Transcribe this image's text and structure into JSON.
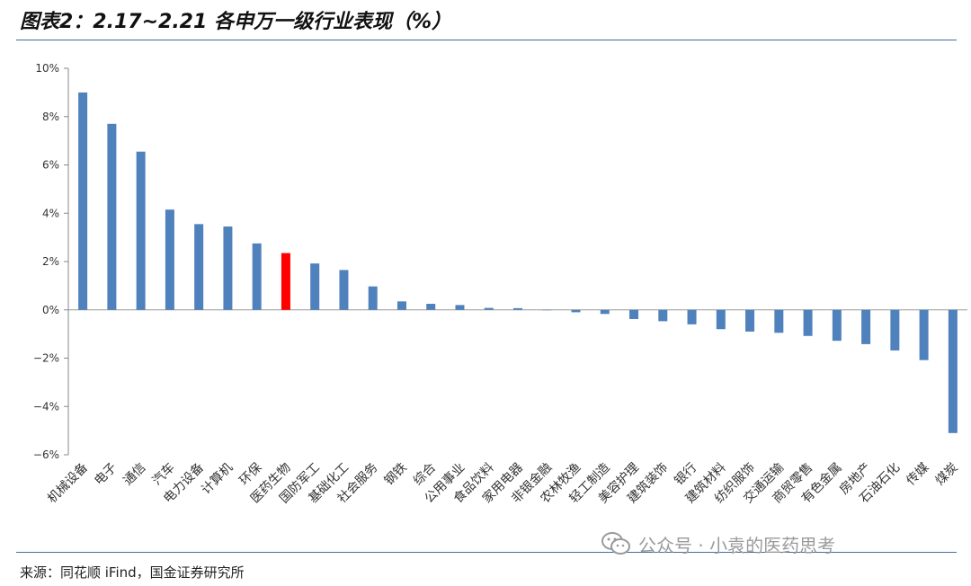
{
  "header": {
    "title": "图表2：2.17~2.21 各申万一级行业表现（%）"
  },
  "footer": {
    "source": "来源：同花顺 iFind，国金证券研究所",
    "watermark": "公众号 · 小袁的医药思考",
    "watermark_icon": "wechat-icon"
  },
  "colors": {
    "bar": "#4f81bd",
    "highlight": "#ff0000",
    "rule": "#3f6f9e"
  },
  "chart_data": {
    "type": "bar",
    "title": "",
    "xlabel": "",
    "ylabel": "",
    "ylim": [
      -6,
      10
    ],
    "yticks": [
      "10%",
      "8%",
      "6%",
      "4%",
      "2%",
      "0%",
      "−2%",
      "−4%",
      "−6%"
    ],
    "grid": false,
    "highlight_category": "医药生物",
    "categories": [
      "机械设备",
      "电子",
      "通信",
      "汽车",
      "电力设备",
      "计算机",
      "环保",
      "医药生物",
      "国防军工",
      "基础化工",
      "社会服务",
      "钢铁",
      "综合",
      "公用事业",
      "食品饮料",
      "家用电器",
      "非银金融",
      "农林牧渔",
      "轻工制造",
      "美容护理",
      "建筑装饰",
      "银行",
      "建筑材料",
      "纺织服饰",
      "交通运输",
      "商贸零售",
      "有色金属",
      "房地产",
      "石油石化",
      "传媒",
      "煤炭"
    ],
    "values": [
      9.0,
      7.7,
      6.55,
      4.15,
      3.55,
      3.45,
      2.75,
      2.35,
      1.92,
      1.65,
      0.97,
      0.35,
      0.25,
      0.2,
      0.08,
      0.07,
      0.0,
      -0.1,
      -0.17,
      -0.38,
      -0.47,
      -0.6,
      -0.8,
      -0.9,
      -0.95,
      -1.08,
      -1.28,
      -1.42,
      -1.68,
      -2.08,
      -5.1
    ]
  }
}
